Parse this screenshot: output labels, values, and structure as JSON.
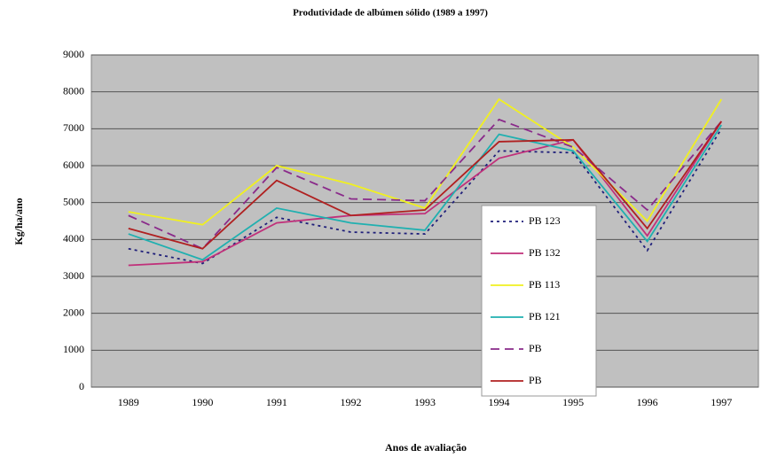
{
  "chart_data": {
    "type": "line",
    "title": "Produtividade de albúmen sólido (1989 a 1997)",
    "x_label": "Anos de avaliação",
    "y_label": "Kg/ha/ano",
    "categories": [
      "1989",
      "1990",
      "1991",
      "1992",
      "1993",
      "1994",
      "1995",
      "1996",
      "1997"
    ],
    "ylim": [
      0,
      9000
    ],
    "yticks": [
      0,
      1000,
      2000,
      3000,
      4000,
      5000,
      6000,
      7000,
      8000,
      9000
    ],
    "grid": true,
    "series": [
      {
        "name": "PB 123",
        "color": "#1f1f7a",
        "dash": "3,4",
        "values": [
          3750,
          3350,
          4600,
          4200,
          4150,
          6400,
          6350,
          3700,
          7000
        ]
      },
      {
        "name": "PB 132",
        "color": "#c0307a",
        "dash": "",
        "values": [
          3300,
          3400,
          4450,
          4650,
          4700,
          6200,
          6700,
          4100,
          7200
        ]
      },
      {
        "name": "PB 113",
        "color": "#f0f020",
        "dash": "",
        "values": [
          4750,
          4400,
          6000,
          5500,
          4850,
          7800,
          6500,
          4500,
          7800
        ]
      },
      {
        "name": "PB 121",
        "color": "#20b0b0",
        "dash": "",
        "values": [
          4150,
          3450,
          4850,
          4450,
          4250,
          6850,
          6400,
          3950,
          7100
        ]
      },
      {
        "name": "PB",
        "color": "#8a2a8a",
        "dash": "10,6",
        "values": [
          4650,
          3750,
          5950,
          5100,
          5050,
          7250,
          6500,
          4800,
          7200
        ]
      },
      {
        "name": "PB",
        "color": "#b02020",
        "dash": "",
        "values": [
          4300,
          3750,
          5600,
          4650,
          4800,
          6650,
          6700,
          4300,
          7200
        ]
      }
    ]
  }
}
